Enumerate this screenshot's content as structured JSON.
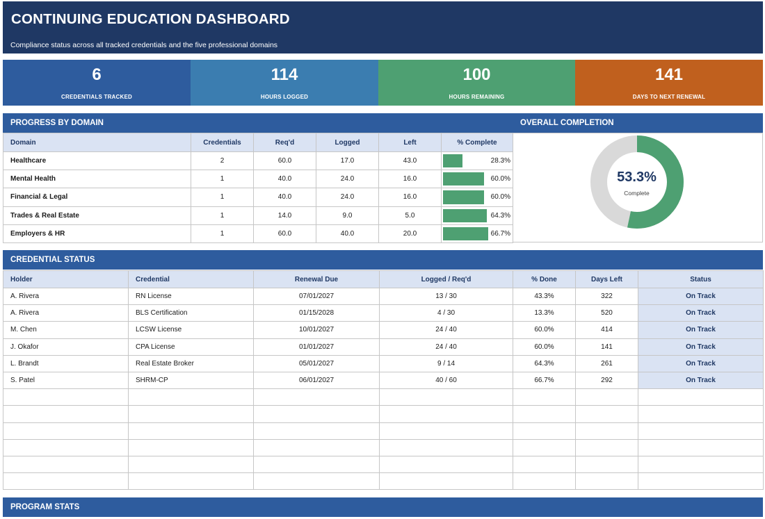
{
  "header": {
    "title": "CONTINUING EDUCATION DASHBOARD",
    "subtitle": "Compliance status across all tracked credentials and the five professional domains"
  },
  "kpis": [
    {
      "value": "6",
      "label": "CREDENTIALS TRACKED",
      "color": "#2e5c9e"
    },
    {
      "value": "114",
      "label": "HOURS LOGGED",
      "color": "#3b7db0"
    },
    {
      "value": "100",
      "label": "HOURS REMAINING",
      "color": "#4ea072"
    },
    {
      "value": "141",
      "label": "DAYS TO NEXT RENEWAL",
      "color": "#c0601e"
    }
  ],
  "domain_section": {
    "title": "PROGRESS BY DOMAIN",
    "columns": [
      "Domain",
      "Credentials",
      "Req'd",
      "Logged",
      "Left",
      "% Complete"
    ],
    "rows": [
      {
        "domain": "Healthcare",
        "credentials": "2",
        "required": "60.0",
        "logged": "17.0",
        "left": "43.0",
        "pct": "28.3%",
        "fraction": 0.283
      },
      {
        "domain": "Mental Health",
        "credentials": "1",
        "required": "40.0",
        "logged": "24.0",
        "left": "16.0",
        "pct": "60.0%",
        "fraction": 0.6
      },
      {
        "domain": "Financial & Legal",
        "credentials": "1",
        "required": "40.0",
        "logged": "24.0",
        "left": "16.0",
        "pct": "60.0%",
        "fraction": 0.6
      },
      {
        "domain": "Trades & Real Estate",
        "credentials": "1",
        "required": "14.0",
        "logged": "9.0",
        "left": "5.0",
        "pct": "64.3%",
        "fraction": 0.643
      },
      {
        "domain": "Employers & HR",
        "credentials": "1",
        "required": "60.0",
        "logged": "40.0",
        "left": "20.0",
        "pct": "66.7%",
        "fraction": 0.667
      }
    ]
  },
  "overall": {
    "title": "OVERALL COMPLETION",
    "value_text": "53.3%",
    "label": "Complete",
    "fraction": 0.533,
    "complete_color": "#4ea072",
    "remaining_color": "#d9d9d9"
  },
  "credential_section": {
    "title": "CREDENTIAL STATUS",
    "columns": [
      "Holder",
      "Credential",
      "Renewal Due",
      "Logged / Req'd",
      "% Done",
      "Days Left",
      "Status"
    ],
    "rows": [
      {
        "holder": "A. Rivera",
        "credential": "RN License",
        "renewal": "07/01/2027",
        "logged_req": "13 / 30",
        "done": "43.3%",
        "days": "322",
        "status": "On Track"
      },
      {
        "holder": "A. Rivera",
        "credential": "BLS Certification",
        "renewal": "01/15/2028",
        "logged_req": "4 / 30",
        "done": "13.3%",
        "days": "520",
        "status": "On Track"
      },
      {
        "holder": "M. Chen",
        "credential": "LCSW License",
        "renewal": "10/01/2027",
        "logged_req": "24 / 40",
        "done": "60.0%",
        "days": "414",
        "status": "On Track"
      },
      {
        "holder": "J. Okafor",
        "credential": "CPA License",
        "renewal": "01/01/2027",
        "logged_req": "24 / 40",
        "done": "60.0%",
        "days": "141",
        "status": "On Track"
      },
      {
        "holder": "L. Brandt",
        "credential": "Real Estate Broker",
        "renewal": "05/01/2027",
        "logged_req": "9 / 14",
        "done": "64.3%",
        "days": "261",
        "status": "On Track"
      },
      {
        "holder": "S. Patel",
        "credential": "SHRM-CP",
        "renewal": "06/01/2027",
        "logged_req": "40 / 60",
        "done": "66.7%",
        "days": "292",
        "status": "On Track"
      }
    ]
  },
  "stats_section": {
    "title": "PROGRAM STATS"
  }
}
